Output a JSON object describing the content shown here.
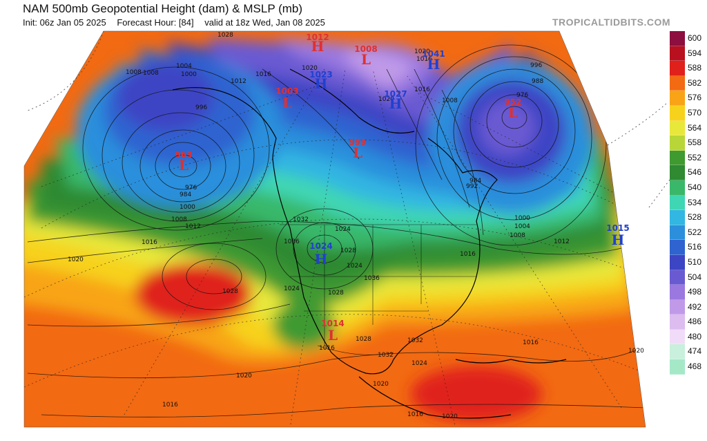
{
  "header": {
    "title": "NAM 500mb Geopotential Height (dam) & MSLP (mb)",
    "init": "Init: 06z Jan 05 2025",
    "forecast_hour": "Forecast Hour: [84]",
    "valid": "valid at 18z Wed, Jan 08 2025",
    "brand": "TROPICALTIDBITS.COM"
  },
  "colorbar": {
    "levels": [
      "600",
      "594",
      "588",
      "582",
      "576",
      "570",
      "564",
      "558",
      "552",
      "546",
      "540",
      "534",
      "528",
      "522",
      "516",
      "510",
      "504",
      "498",
      "492",
      "486",
      "480",
      "474",
      "468"
    ],
    "colors": [
      "#8c0f3f",
      "#b8101e",
      "#e0201a",
      "#f26a12",
      "#f8a416",
      "#f7d21c",
      "#e8e83a",
      "#b8d637",
      "#3f9a30",
      "#2f8a32",
      "#39b86a",
      "#3fd6b4",
      "#32b6e2",
      "#2b8fdc",
      "#2e63d0",
      "#3c45c4",
      "#6a5ad2",
      "#9a78e0",
      "#c09ae8",
      "#ddbcf0",
      "#f0dcf8",
      "#c8f0dc",
      "#a4e8c8"
    ]
  },
  "pressure_systems": [
    {
      "type": "H",
      "value": "1012",
      "color": "#e03030"
    },
    {
      "type": "L",
      "value": "1008",
      "color": "#e03030"
    },
    {
      "type": "H",
      "value": "1023",
      "color": "#2040d0"
    },
    {
      "type": "H",
      "value": "1024",
      "color": "#2040d0"
    },
    {
      "type": "L",
      "value": "1003",
      "color": "#e03030"
    },
    {
      "type": "H",
      "value": "1027",
      "color": "#2040d0"
    },
    {
      "type": "L",
      "value": "952",
      "color": "#e03030"
    },
    {
      "type": "L",
      "value": "963",
      "color": "#e03030"
    },
    {
      "type": "L",
      "value": "999",
      "color": "#e03030"
    },
    {
      "type": "H",
      "value": "1015",
      "color": "#2040d0"
    },
    {
      "type": "H",
      "value": "1041",
      "color": "#2040d0"
    },
    {
      "type": "L",
      "value": "1014",
      "color": "#e03030"
    }
  ],
  "isobar_labels": [
    "1028",
    "1008",
    "1004",
    "1000",
    "996",
    "1016",
    "1012",
    "1020",
    "1008",
    "1016",
    "1020",
    "1020",
    "1016",
    "1008",
    "996",
    "988",
    "976",
    "984",
    "992",
    "1000",
    "1004",
    "1008",
    "1012",
    "976",
    "984",
    "1000",
    "1008",
    "1012",
    "1016",
    "1020",
    "1028",
    "1024",
    "1036",
    "1032",
    "1036",
    "1028",
    "1024",
    "1028",
    "1024",
    "1032",
    "1020",
    "1016",
    "1024",
    "1032",
    "1028",
    "1020",
    "1016",
    "1020",
    "1016",
    "1020",
    "1016",
    "1016"
  ]
}
